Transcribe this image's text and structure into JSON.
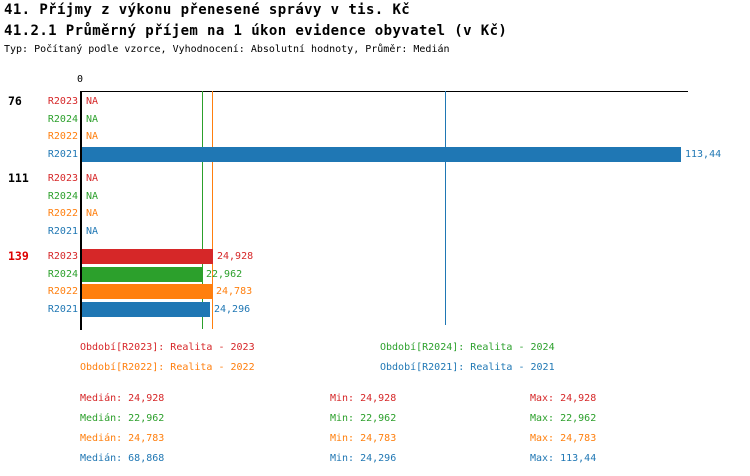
{
  "header": {
    "title_line1": "41. Příjmy z výkonu přenesené správy v tis. Kč",
    "title_line2": "41.2.1 Průměrný příjem na 1 úkon evidence obyvatel (v Kč)",
    "subtitle": "Typ: Počítaný podle vzorce, Vyhodnocení: Absolutní hodnoty, Průměr: Medián"
  },
  "chart_data": {
    "type": "bar",
    "orientation": "horizontal",
    "x_axis": {
      "zero_label": "0",
      "max": 113.44
    },
    "na_label": "NA",
    "series_colors": {
      "R2023": "#d62728",
      "R2024": "#2ca02c",
      "R2022": "#ff7f0e",
      "R2021": "#1f77b4"
    },
    "highlight_color": "#dd0000",
    "groups": [
      {
        "label": "76",
        "highlighted": false,
        "rows": [
          {
            "series": "R2023",
            "value": null,
            "display": "NA"
          },
          {
            "series": "R2024",
            "value": null,
            "display": "NA"
          },
          {
            "series": "R2022",
            "value": null,
            "display": "NA"
          },
          {
            "series": "R2021",
            "value": 113.44,
            "display": "113,44"
          }
        ]
      },
      {
        "label": "111",
        "highlighted": false,
        "rows": [
          {
            "series": "R2023",
            "value": null,
            "display": "NA"
          },
          {
            "series": "R2024",
            "value": null,
            "display": "NA"
          },
          {
            "series": "R2022",
            "value": null,
            "display": "NA"
          },
          {
            "series": "R2021",
            "value": null,
            "display": "NA"
          }
        ]
      },
      {
        "label": "139",
        "highlighted": true,
        "rows": [
          {
            "series": "R2023",
            "value": 24.928,
            "display": "24,928"
          },
          {
            "series": "R2024",
            "value": 22.962,
            "display": "22,962"
          },
          {
            "series": "R2022",
            "value": 24.783,
            "display": "24,783"
          },
          {
            "series": "R2021",
            "value": 24.296,
            "display": "24,296"
          }
        ]
      }
    ],
    "median_lines": [
      {
        "series": "R2024",
        "value": 22.962
      },
      {
        "series": "R2022",
        "value": 24.783
      },
      {
        "series": "R2021",
        "value": 68.868
      }
    ],
    "legend": [
      {
        "series": "R2023",
        "label": "Období[R2023]: Realita - 2023"
      },
      {
        "series": "R2024",
        "label": "Období[R2024]: Realita - 2024"
      },
      {
        "series": "R2022",
        "label": "Období[R2022]: Realita - 2022"
      },
      {
        "series": "R2021",
        "label": "Období[R2021]: Realita - 2021"
      }
    ],
    "stats": {
      "labels": {
        "median": "Medián",
        "min": "Min",
        "max": "Max"
      },
      "rows": [
        {
          "series": "R2023",
          "median": "24,928",
          "min": "24,928",
          "max": "24,928"
        },
        {
          "series": "R2024",
          "median": "22,962",
          "min": "22,962",
          "max": "22,962"
        },
        {
          "series": "R2022",
          "median": "24,783",
          "min": "24,783",
          "max": "24,783"
        },
        {
          "series": "R2021",
          "median": "68,868",
          "min": "24,296",
          "max": "113,44"
        }
      ]
    }
  }
}
